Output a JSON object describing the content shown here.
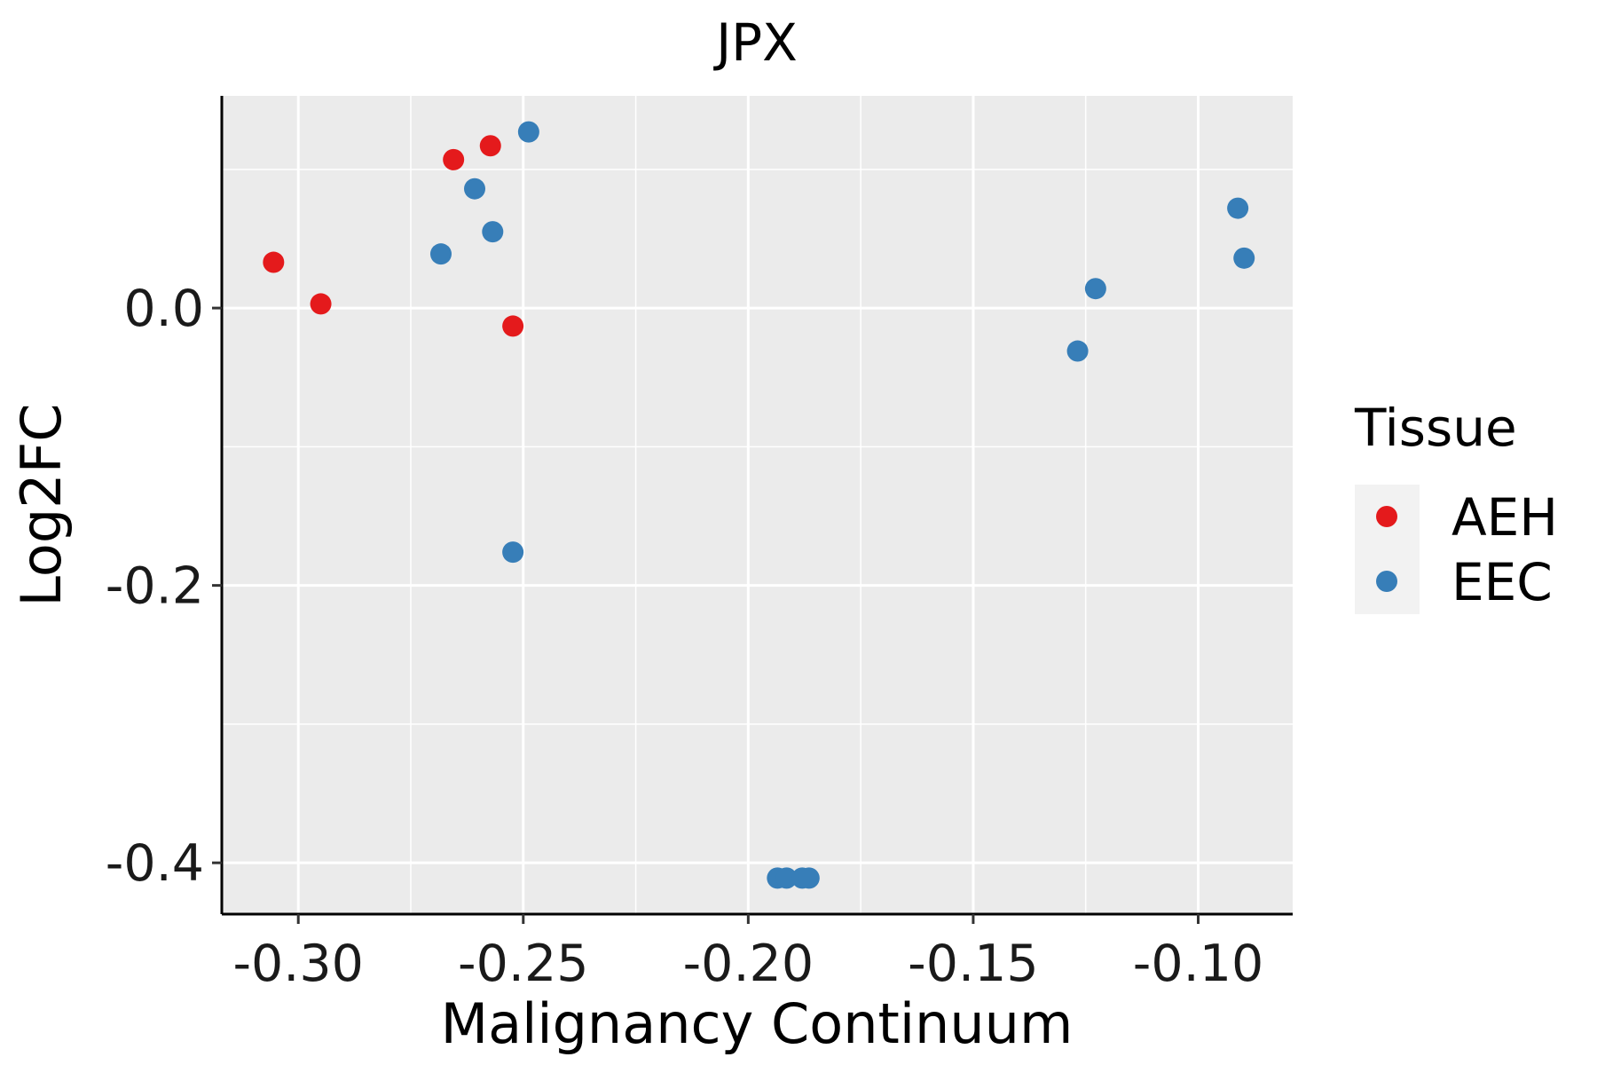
{
  "chart_data": {
    "type": "scatter",
    "title": "JPX",
    "xlabel": "Malignancy Continuum",
    "ylabel": "Log2FC",
    "xlim": [
      -0.317,
      -0.079
    ],
    "ylim": [
      -0.437,
      0.153
    ],
    "xticks": [
      -0.3,
      -0.25,
      -0.2,
      -0.15,
      -0.1
    ],
    "xtick_labels": [
      "-0.30",
      "-0.25",
      "-0.20",
      "-0.15",
      "-0.10"
    ],
    "xminor": [
      -0.275,
      -0.225,
      -0.175,
      -0.125
    ],
    "yticks": [
      0.0,
      -0.2,
      -0.4
    ],
    "ytick_labels": [
      "0.0",
      "-0.2",
      "-0.4"
    ],
    "yminor": [
      0.1,
      -0.1,
      -0.3
    ],
    "grid": true,
    "legend": {
      "title": "Tissue",
      "position": "right",
      "entries": [
        {
          "label": "AEH",
          "color": "#E41A1C"
        },
        {
          "label": "EEC",
          "color": "#377EB8"
        }
      ]
    },
    "series": [
      {
        "name": "AEH",
        "color": "#E41A1C",
        "points": [
          [
            -0.3055,
            0.033
          ],
          [
            -0.295,
            0.003
          ],
          [
            -0.2655,
            0.107
          ],
          [
            -0.2573,
            0.117
          ],
          [
            -0.2523,
            -0.013
          ]
        ]
      },
      {
        "name": "EEC",
        "color": "#377EB8",
        "points": [
          [
            -0.2488,
            0.127
          ],
          [
            -0.2608,
            0.086
          ],
          [
            -0.2568,
            0.055
          ],
          [
            -0.2683,
            0.039
          ],
          [
            -0.2523,
            -0.176
          ],
          [
            -0.1935,
            -0.411
          ],
          [
            -0.1915,
            -0.411
          ],
          [
            -0.188,
            -0.411
          ],
          [
            -0.1865,
            -0.411
          ],
          [
            -0.1268,
            -0.031
          ],
          [
            -0.1228,
            0.014
          ],
          [
            -0.0912,
            0.072
          ],
          [
            -0.0898,
            0.036
          ]
        ]
      }
    ]
  }
}
